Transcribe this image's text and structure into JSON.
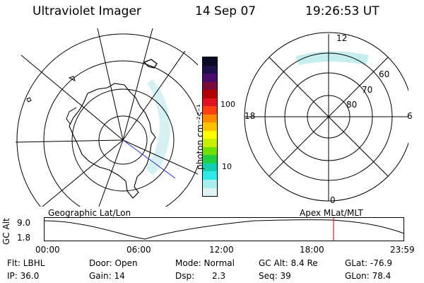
{
  "header": {
    "instrument": "Ultraviolet Imager",
    "date": "14 Sep 07",
    "time": "19:26:53 UT"
  },
  "colorbar": {
    "unit_label": "photon cm⁻²s⁻¹",
    "ticks": [
      "100",
      "10"
    ],
    "colors": [
      "#0a0a24",
      "#1f0f4a",
      "#4a0a6a",
      "#7a0a3a",
      "#b00000",
      "#e01020",
      "#ff4010",
      "#ff8a00",
      "#ffc000",
      "#ffff00",
      "#c8f000",
      "#70e000",
      "#20d040",
      "#10d0b0",
      "#30e8e8",
      "#a8f0f0",
      "#e0f4f4"
    ]
  },
  "panels": {
    "left_caption": "Geographic Lat/Lon",
    "right_caption": "Apex MLat/MLT",
    "right_labels": {
      "top": "12",
      "bottom": "0",
      "left": "18",
      "right": "6",
      "r60": "60",
      "r70": "70",
      "r80": "80"
    }
  },
  "timeline": {
    "ylabel": "GC Alt",
    "ymax": "9.0",
    "ymin": "1.8",
    "xticks": [
      "00:00",
      "06:00",
      "12:00",
      "18:00",
      "23:59"
    ],
    "marker_color": "#cc0000"
  },
  "status": {
    "filter": "Flt: LBHL",
    "ip": "IP: 36.0",
    "door": "Door: Open",
    "gain": "Gain: 14",
    "mode": "Mode: Normal",
    "dsp_label": "Dsp:",
    "dsp_value": "2.3",
    "gcalt": "GC Alt: 8.4 Re",
    "seq": "Seq: 39",
    "glat": "GLat: -76.9",
    "glon": "GLon: 78.4"
  }
}
